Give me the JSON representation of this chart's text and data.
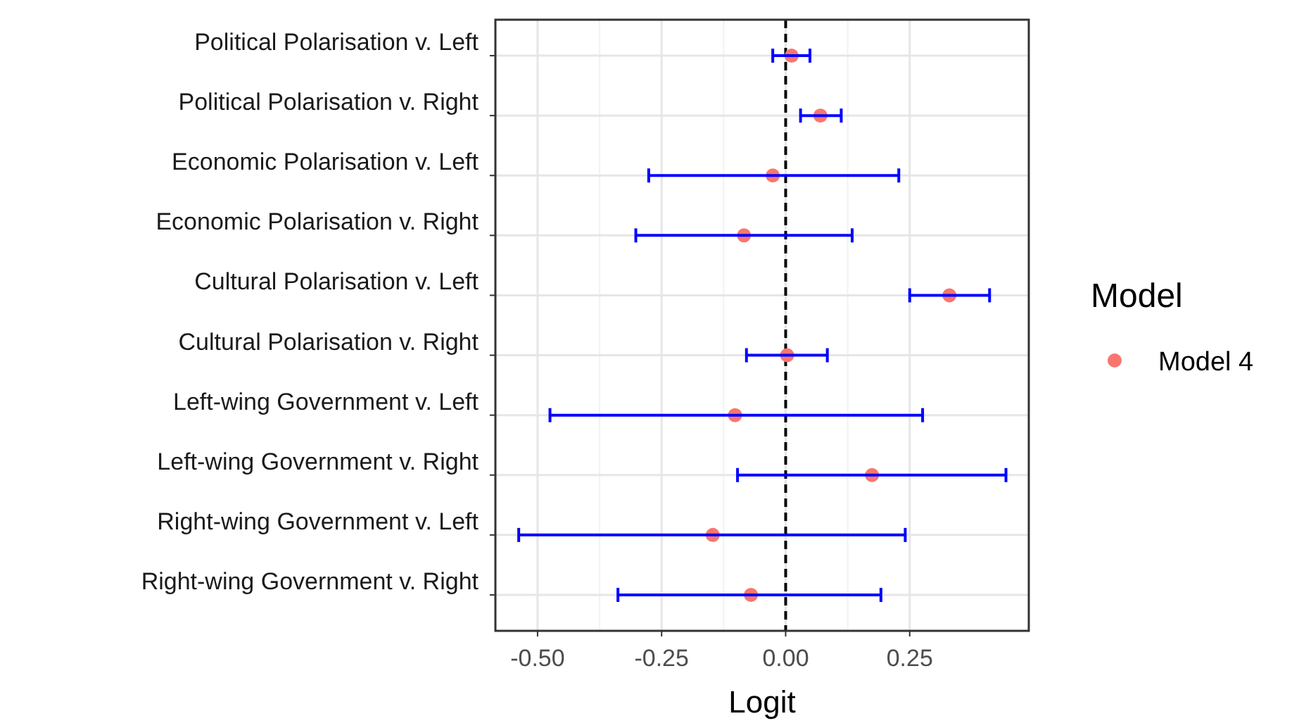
{
  "chart_data": {
    "type": "scatter",
    "orientation": "horizontal",
    "xlabel": "Logit",
    "legend_title": "Model",
    "legend": "right",
    "grid": true,
    "marker": "circle",
    "categories": [
      "Political Polarisation v. Left",
      "Political Polarisation v. Right",
      "Economic Polarisation v. Left",
      "Economic Polarisation v. Right",
      "Cultural Polarisation v. Left",
      "Cultural Polarisation v. Right",
      "Left-wing Government v. Left",
      "Left-wing Government v. Right",
      "Right-wing Government v. Left",
      "Right-wing Government v. Right"
    ],
    "series": [
      {
        "name": "Model 4",
        "color": "#0000ff",
        "colors": [
          "#f8766d",
          "#f8766d",
          "#f8766d",
          "#f8766d",
          "#f8766d",
          "#f8766d",
          "#f8766d",
          "#f8766d",
          "#f8766d",
          "#f8766d"
        ],
        "values": [
          0.012,
          0.07,
          -0.026,
          -0.084,
          0.33,
          0.003,
          -0.102,
          0.174,
          -0.147,
          -0.07
        ],
        "errors": [
          [
            -0.026,
            0.049
          ],
          [
            0.03,
            0.112
          ],
          [
            -0.276,
            0.228
          ],
          [
            -0.302,
            0.134
          ],
          [
            0.25,
            0.411
          ],
          [
            -0.079,
            0.084
          ],
          [
            -0.475,
            0.276
          ],
          [
            -0.097,
            0.444
          ],
          [
            -0.538,
            0.241
          ],
          [
            -0.338,
            0.192
          ]
        ]
      }
    ],
    "xlim": [
      -0.585,
      0.49
    ],
    "xticks": [
      {
        "value": -0.5,
        "label": "-0.50"
      },
      {
        "value": -0.25,
        "label": "-0.25"
      },
      {
        "value": 0,
        "label": "0.00"
      },
      {
        "value": 0.25,
        "label": "0.25"
      }
    ],
    "ref_lines": [
      {
        "axis": "x",
        "value": 0,
        "line_style": "dashed",
        "color": "#000000"
      }
    ]
  }
}
